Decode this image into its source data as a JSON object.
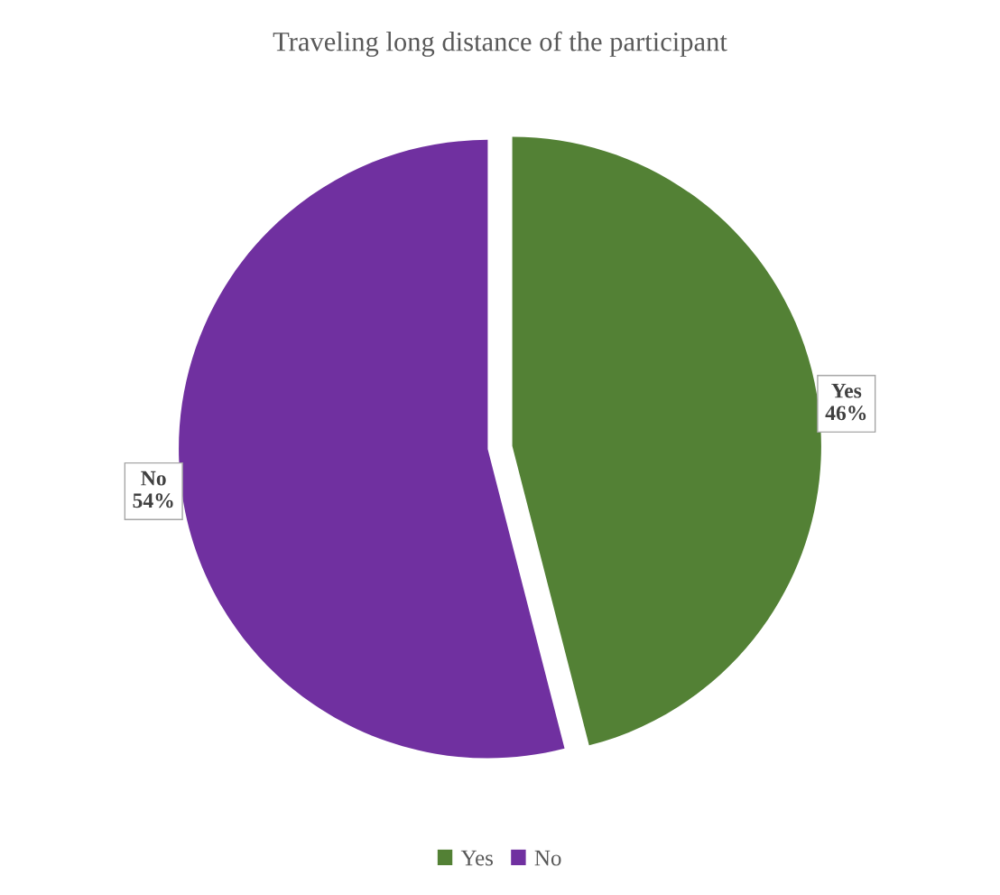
{
  "chart_data": {
    "type": "pie",
    "title": "Traveling long distance of the participant",
    "categories": [
      "Yes",
      "No"
    ],
    "values": [
      46,
      54
    ],
    "colors": [
      "#538135",
      "#7030a0"
    ],
    "value_labels": [
      "46%",
      "54%"
    ],
    "legend": "bottom"
  }
}
